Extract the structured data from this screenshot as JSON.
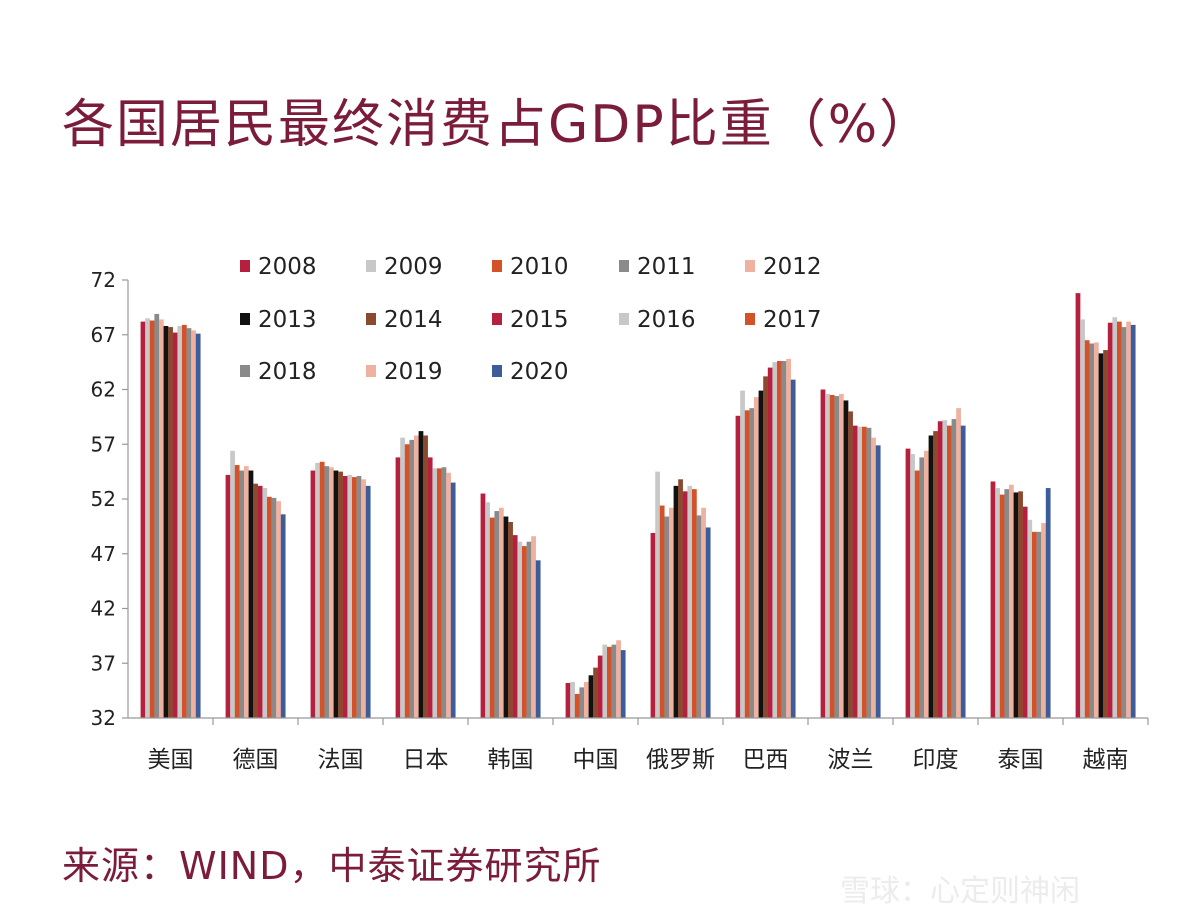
{
  "watermark": "雪球：心定则神闲",
  "chart_data": {
    "type": "bar",
    "title": "各国居民最终消费占GDP比重（%）",
    "source": "来源：WIND，中泰证券研究所",
    "ylim": [
      32,
      72
    ],
    "yticks": [
      "72",
      "67",
      "62",
      "57",
      "52",
      "47",
      "42",
      "37",
      "32"
    ],
    "categories": [
      "美国",
      "德国",
      "法国",
      "日本",
      "韩国",
      "中国",
      "俄罗斯",
      "巴西",
      "波兰",
      "印度",
      "泰国",
      "越南"
    ],
    "legend_position": "top",
    "series": [
      {
        "name": "2008",
        "color": "#b5203f",
        "values": [
          68.2,
          54.2,
          54.6,
          55.8,
          52.5,
          35.2,
          48.9,
          59.6,
          62.0,
          56.6,
          53.6,
          70.8
        ]
      },
      {
        "name": "2009",
        "color": "#c8c8c8",
        "values": [
          68.5,
          56.4,
          55.3,
          57.6,
          51.7,
          35.3,
          54.5,
          61.9,
          61.6,
          56.1,
          53.0,
          68.4
        ]
      },
      {
        "name": "2010",
        "color": "#d4522a",
        "values": [
          68.3,
          55.1,
          55.4,
          57.0,
          50.3,
          34.2,
          51.4,
          60.1,
          61.5,
          54.6,
          52.4,
          66.5
        ]
      },
      {
        "name": "2011",
        "color": "#8a8a8a",
        "values": [
          68.9,
          54.6,
          55.0,
          57.4,
          50.9,
          34.8,
          50.4,
          60.3,
          61.4,
          55.8,
          52.9,
          66.2
        ]
      },
      {
        "name": "2012",
        "color": "#efb1a0",
        "values": [
          68.4,
          55.0,
          54.9,
          57.8,
          51.2,
          35.3,
          51.2,
          61.3,
          61.6,
          56.4,
          53.3,
          66.3
        ]
      },
      {
        "name": "2013",
        "color": "#111111",
        "values": [
          67.8,
          54.6,
          54.6,
          58.2,
          50.4,
          35.9,
          53.2,
          61.9,
          61.0,
          57.8,
          52.6,
          65.3
        ]
      },
      {
        "name": "2014",
        "color": "#8b4a2e",
        "values": [
          67.7,
          53.4,
          54.5,
          57.8,
          49.9,
          36.6,
          53.8,
          63.2,
          60.0,
          58.2,
          52.7,
          65.6
        ]
      },
      {
        "name": "2015",
        "color": "#b5203f",
        "values": [
          67.2,
          53.2,
          54.1,
          55.8,
          48.7,
          37.7,
          52.7,
          64.0,
          58.7,
          59.1,
          51.3,
          68.1
        ]
      },
      {
        "name": "2016",
        "color": "#c8c8c8",
        "values": [
          67.8,
          53.0,
          54.2,
          54.8,
          48.1,
          38.7,
          53.2,
          64.5,
          58.6,
          59.2,
          50.1,
          68.6
        ]
      },
      {
        "name": "2017",
        "color": "#d4522a",
        "values": [
          67.9,
          52.2,
          54.0,
          54.8,
          47.7,
          38.5,
          52.9,
          64.6,
          58.6,
          58.7,
          49.0,
          68.2
        ]
      },
      {
        "name": "2018",
        "color": "#8a8a8a",
        "values": [
          67.6,
          52.1,
          54.1,
          54.9,
          48.1,
          38.7,
          50.5,
          64.6,
          58.5,
          59.3,
          49.0,
          67.7
        ]
      },
      {
        "name": "2019",
        "color": "#efb1a0",
        "values": [
          67.4,
          51.8,
          53.8,
          54.4,
          48.6,
          39.1,
          51.2,
          64.8,
          57.6,
          60.3,
          49.8,
          68.2
        ]
      },
      {
        "name": "2020",
        "color": "#3d5c9a",
        "values": [
          67.1,
          50.6,
          53.2,
          53.5,
          46.4,
          38.2,
          49.4,
          62.9,
          56.9,
          58.7,
          53.0,
          67.9
        ]
      }
    ]
  }
}
